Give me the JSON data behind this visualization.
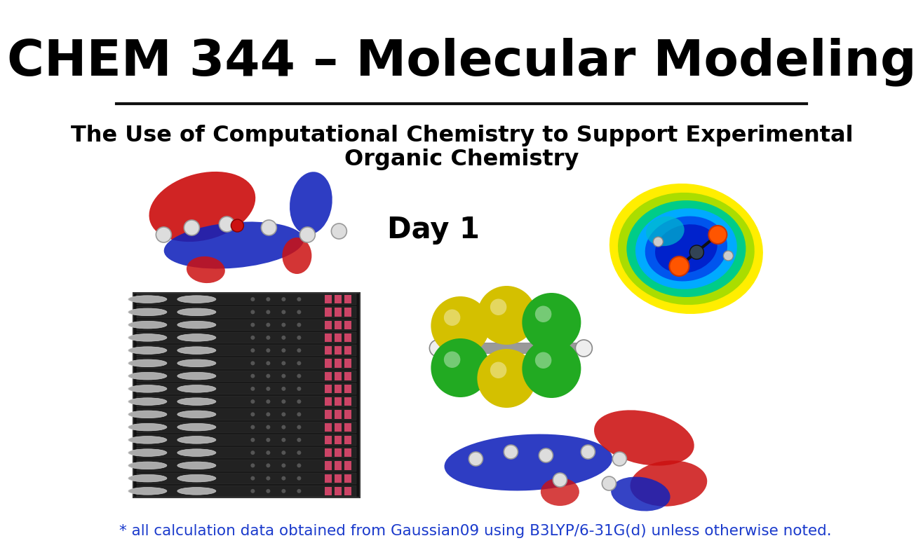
{
  "title": "CHEM 344 – Molecular Modeling",
  "subtitle_line1": "The Use of Computational Chemistry to Support Experimental",
  "subtitle_line2": "Organic Chemistry",
  "day_label": "Day 1",
  "footnote": "* all calculation data obtained from Gaussian09 using B3LYP/6-31G(d) unless otherwise noted.",
  "bg_color": "#ffffff",
  "title_color": "#000000",
  "subtitle_color": "#000000",
  "day_color": "#000000",
  "footnote_color": "#1a3acc",
  "title_fontsize": 52,
  "subtitle_fontsize": 23,
  "day_fontsize": 30,
  "footnote_fontsize": 15.5
}
